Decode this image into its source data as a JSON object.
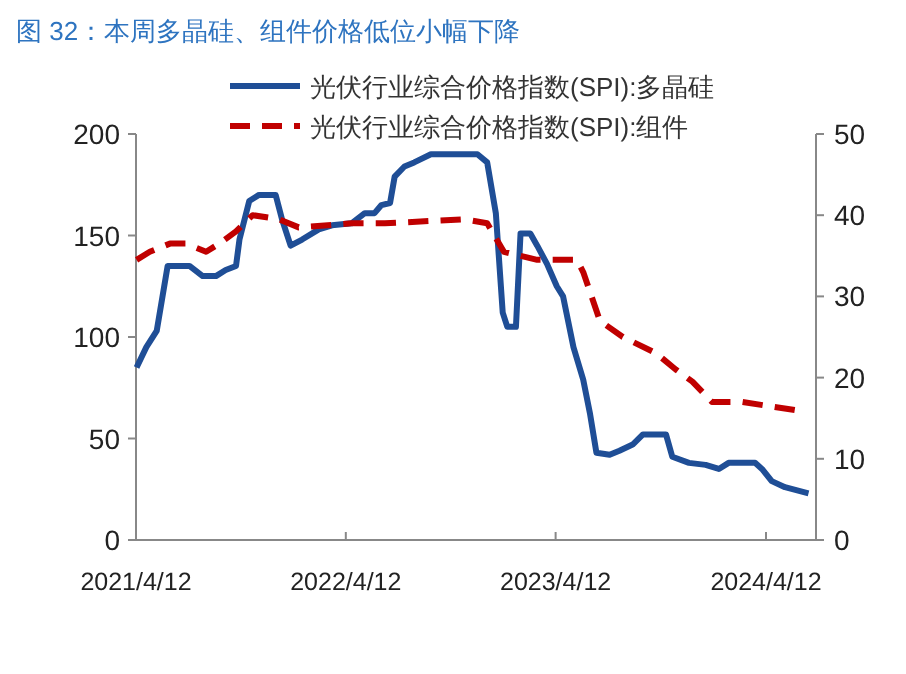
{
  "chart_data": {
    "type": "line",
    "title": "图 32：本周多晶硅、组件价格低位小幅下降",
    "legend": "top",
    "grid": false,
    "xlim": [
      "2021-04-12",
      "2024-07-08"
    ],
    "xticks": [
      {
        "value": "2021-04-12",
        "label": "2021/4/12"
      },
      {
        "value": "2022-04-12",
        "label": "2022/4/12"
      },
      {
        "value": "2023-04-12",
        "label": "2023/4/12"
      },
      {
        "value": "2024-04-12",
        "label": "2024/4/12"
      }
    ],
    "ylim": [
      0,
      200
    ],
    "yticks": [
      0,
      50,
      100,
      150,
      200
    ],
    "y2lim": [
      0,
      50
    ],
    "y2ticks": [
      0,
      10,
      20,
      30,
      40,
      50
    ],
    "series": [
      {
        "name": "光伏行业综合价格指数(SPI):多晶硅",
        "color": "#1f4e96",
        "line_style": "solid",
        "x": [
          "2021-04-13",
          "2021-04-30",
          "2021-05-18",
          "2021-06-06",
          "2021-07-14",
          "2021-08-06",
          "2021-08-29",
          "2021-09-15",
          "2021-10-03",
          "2021-10-09",
          "2021-10-26",
          "2021-11-12",
          "2021-12-11",
          "2021-12-22",
          "2022-01-06",
          "2022-01-26",
          "2022-02-24",
          "2022-03-19",
          "2022-04-22",
          "2022-05-15",
          "2022-06-01",
          "2022-06-13",
          "2022-06-28",
          "2022-07-06",
          "2022-07-23",
          "2022-08-09",
          "2022-09-07",
          "2022-11-27",
          "2022-12-14",
          "2022-12-29",
          "2023-01-10",
          "2023-01-18",
          "2023-02-02",
          "2023-02-10",
          "2023-02-27",
          "2023-03-11",
          "2023-03-28",
          "2023-04-14",
          "2023-04-25",
          "2023-05-13",
          "2023-05-30",
          "2023-06-11",
          "2023-06-22",
          "2023-07-15",
          "2023-08-01",
          "2023-08-24",
          "2023-09-11",
          "2023-10-21",
          "2023-11-01",
          "2023-11-30",
          "2023-12-29",
          "2024-01-21",
          "2024-02-07",
          "2024-03-24",
          "2024-04-05",
          "2024-04-22",
          "2024-05-15",
          "2024-06-25"
        ],
        "values": [
          85,
          95,
          103,
          135,
          135,
          130,
          130,
          133,
          135,
          148,
          167,
          170,
          170,
          158,
          145,
          148,
          153,
          155,
          156,
          161,
          161,
          165,
          166,
          179,
          184,
          186,
          190,
          190,
          186,
          161,
          112,
          105,
          105,
          151,
          151,
          145,
          136,
          125,
          120,
          95,
          79,
          62,
          43,
          42,
          44,
          47,
          52,
          52,
          41,
          38,
          37,
          35,
          38,
          38,
          35,
          29,
          26,
          23
        ]
      },
      {
        "name": "光伏行业综合价格指数(SPI):组件",
        "color": "#c00000",
        "line_style": "dashed",
        "axis": "y2",
        "x": [
          "2021-04-13",
          "2021-05-06",
          "2021-06-10",
          "2021-07-08",
          "2021-08-12",
          "2021-09-04",
          "2021-10-03",
          "2021-11-01",
          "2021-12-17",
          "2022-01-20",
          "2022-04-22",
          "2022-06-19",
          "2022-11-04",
          "2022-12-14",
          "2023-01-12",
          "2023-03-11",
          "2023-05-19",
          "2023-05-30",
          "2023-06-28",
          "2023-08-07",
          "2023-10-04",
          "2023-11-07",
          "2023-12-06",
          "2024-01-09",
          "2024-03-01",
          "2024-04-16",
          "2024-06-01"
        ],
        "values": [
          34.5,
          35.5,
          36.5,
          36.5,
          35.5,
          36.5,
          38,
          40,
          39.5,
          38.5,
          39,
          39,
          39.5,
          39,
          35.5,
          34.5,
          34.5,
          33,
          27,
          25,
          23,
          21,
          19.5,
          17,
          17,
          16.5,
          16
        ]
      }
    ]
  }
}
